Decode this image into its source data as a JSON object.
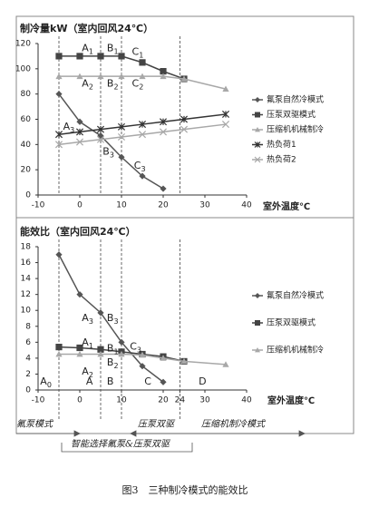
{
  "chart_data": [
    {
      "type": "line",
      "title": "制冷量kW（室内回风24℃）",
      "xlabel": "室外温度℃",
      "xlim": [
        -10,
        40
      ],
      "ylim": [
        0,
        120
      ],
      "xticks": [
        -10,
        0,
        10,
        20,
        30,
        40
      ],
      "yticks": [
        0,
        20,
        40,
        60,
        80,
        100,
        120
      ],
      "dashed_lines": [
        -5,
        5,
        10,
        24
      ],
      "series": [
        {
          "name": "氟泵自然冷模式",
          "color": "#555555",
          "marker": "diamond",
          "x": [
            -5,
            0,
            5,
            10,
            15,
            20
          ],
          "values": [
            80,
            58,
            47,
            30,
            15,
            5
          ]
        },
        {
          "name": "压泵双驱模式",
          "color": "#444444",
          "marker": "square",
          "x": [
            -5,
            0,
            5,
            10,
            15,
            20,
            25
          ],
          "values": [
            110,
            110,
            110,
            110,
            105,
            98,
            92
          ]
        },
        {
          "name": "压缩机机械制冷",
          "color": "#a8a8a8",
          "marker": "triangle",
          "x": [
            -5,
            0,
            5,
            10,
            15,
            20,
            25,
            35
          ],
          "values": [
            94,
            94,
            94,
            94,
            94,
            94,
            92,
            84
          ]
        },
        {
          "name": "热负荷1",
          "color": "#333333",
          "marker": "star",
          "x": [
            -5,
            0,
            5,
            10,
            15,
            20,
            25,
            35
          ],
          "values": [
            48,
            50,
            52,
            54,
            56,
            58,
            60,
            64
          ]
        },
        {
          "name": "热负荷2",
          "color": "#a8a8a8",
          "marker": "x",
          "x": [
            -5,
            0,
            5,
            10,
            15,
            20,
            25,
            35
          ],
          "values": [
            40,
            42,
            44,
            46,
            48,
            50,
            52,
            56
          ]
        }
      ],
      "annotations": [
        {
          "text": "A",
          "sub": "1",
          "x": 0.5,
          "y": 116
        },
        {
          "text": "B",
          "sub": "1",
          "x": 6.5,
          "y": 116
        },
        {
          "text": "C",
          "sub": "1",
          "x": 12.5,
          "y": 113
        },
        {
          "text": "A",
          "sub": "2",
          "x": 0.5,
          "y": 88
        },
        {
          "text": "B",
          "sub": "2",
          "x": 6.5,
          "y": 88
        },
        {
          "text": "C",
          "sub": "2",
          "x": 12.5,
          "y": 88
        },
        {
          "text": "A",
          "sub": "3",
          "x": -4,
          "y": 54
        },
        {
          "text": "B",
          "sub": "3",
          "x": 5.5,
          "y": 34
        },
        {
          "text": "C",
          "sub": "3",
          "x": 13,
          "y": 23
        }
      ]
    },
    {
      "type": "line",
      "title": "能效比（室内回风24℃）",
      "xlabel": "室外温度℃",
      "xlim": [
        -10,
        40
      ],
      "ylim": [
        0,
        18
      ],
      "xticks": [
        -10,
        0,
        10,
        20,
        24,
        30,
        40
      ],
      "yticks": [
        0,
        2,
        4,
        6,
        8,
        10,
        12,
        14,
        16,
        18
      ],
      "dashed_lines": [
        -5,
        5,
        10,
        24
      ],
      "series": [
        {
          "name": "氟泵自然冷模式",
          "color": "#555555",
          "marker": "diamond",
          "x": [
            -5,
            0,
            5,
            10,
            15,
            20
          ],
          "values": [
            17,
            12,
            9.7,
            6,
            3,
            1
          ]
        },
        {
          "name": "压泵双驱模式",
          "color": "#444444",
          "marker": "square",
          "x": [
            -5,
            0,
            5,
            10,
            15,
            20,
            25
          ],
          "values": [
            5.4,
            5.3,
            5.1,
            4.8,
            4.5,
            4.2,
            3.6
          ]
        },
        {
          "name": "压缩机机械制冷",
          "color": "#a8a8a8",
          "marker": "triangle",
          "x": [
            -5,
            0,
            5,
            10,
            15,
            20,
            25,
            35
          ],
          "values": [
            4.5,
            4.5,
            4.5,
            4.5,
            4.4,
            4,
            3.6,
            3.2
          ]
        }
      ],
      "annotations": [
        {
          "text": "A",
          "sub": "3",
          "x": 0.5,
          "y": 9
        },
        {
          "text": "B",
          "sub": "3",
          "x": 6.5,
          "y": 9
        },
        {
          "text": "A",
          "sub": "1",
          "x": 0.5,
          "y": 5.9
        },
        {
          "text": "B",
          "sub": "1",
          "x": 6.5,
          "y": 5.2
        },
        {
          "text": "C",
          "sub": "3",
          "x": 12,
          "y": 5.4
        },
        {
          "text": "A",
          "sub": "2",
          "x": 0.5,
          "y": 2.3
        },
        {
          "text": "B",
          "sub": "2",
          "x": 6.5,
          "y": 3.4
        },
        {
          "text": "A",
          "sub": "0",
          "x": -9.5,
          "y": 1
        },
        {
          "text": "A",
          "x": 1.5,
          "y": 1
        },
        {
          "text": "B",
          "x": 6.5,
          "y": 1
        },
        {
          "text": "C",
          "x": 15.5,
          "y": 1
        },
        {
          "text": "D",
          "x": 28.5,
          "y": 1
        }
      ]
    }
  ],
  "modes": {
    "fluorine": "氟泵模式",
    "dual": "压泵双驱",
    "compressor": "压缩机制冷模式",
    "smart": "智能选择氟泵&压泵双驱"
  },
  "caption": "图3　三种制冷模式的能效比"
}
